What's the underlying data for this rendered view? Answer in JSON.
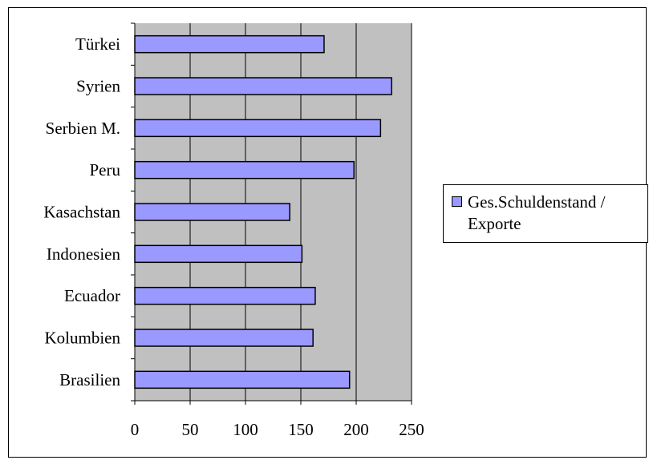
{
  "chart_data": {
    "type": "bar",
    "orientation": "horizontal",
    "categories": [
      "Brasilien",
      "Kolumbien",
      "Ecuador",
      "Indonesien",
      "Kasachstan",
      "Peru",
      "Serbien M.",
      "Syrien",
      "Türkei"
    ],
    "series": [
      {
        "name": "Ges.Schuldenstand / Exporte",
        "values": [
          194,
          161,
          163,
          151,
          140,
          198,
          222,
          232,
          171
        ]
      }
    ],
    "xlim": [
      0,
      250
    ],
    "xticks": [
      "0",
      "50",
      "100",
      "150",
      "200",
      "250"
    ],
    "title": "",
    "xlabel": "",
    "ylabel": "",
    "grid": "vertical major gridlines",
    "legend_position": "right",
    "colors": {
      "bar_fill": "#9999ff",
      "plot_background": "#c0c0c0",
      "gridline": "#000000"
    }
  }
}
